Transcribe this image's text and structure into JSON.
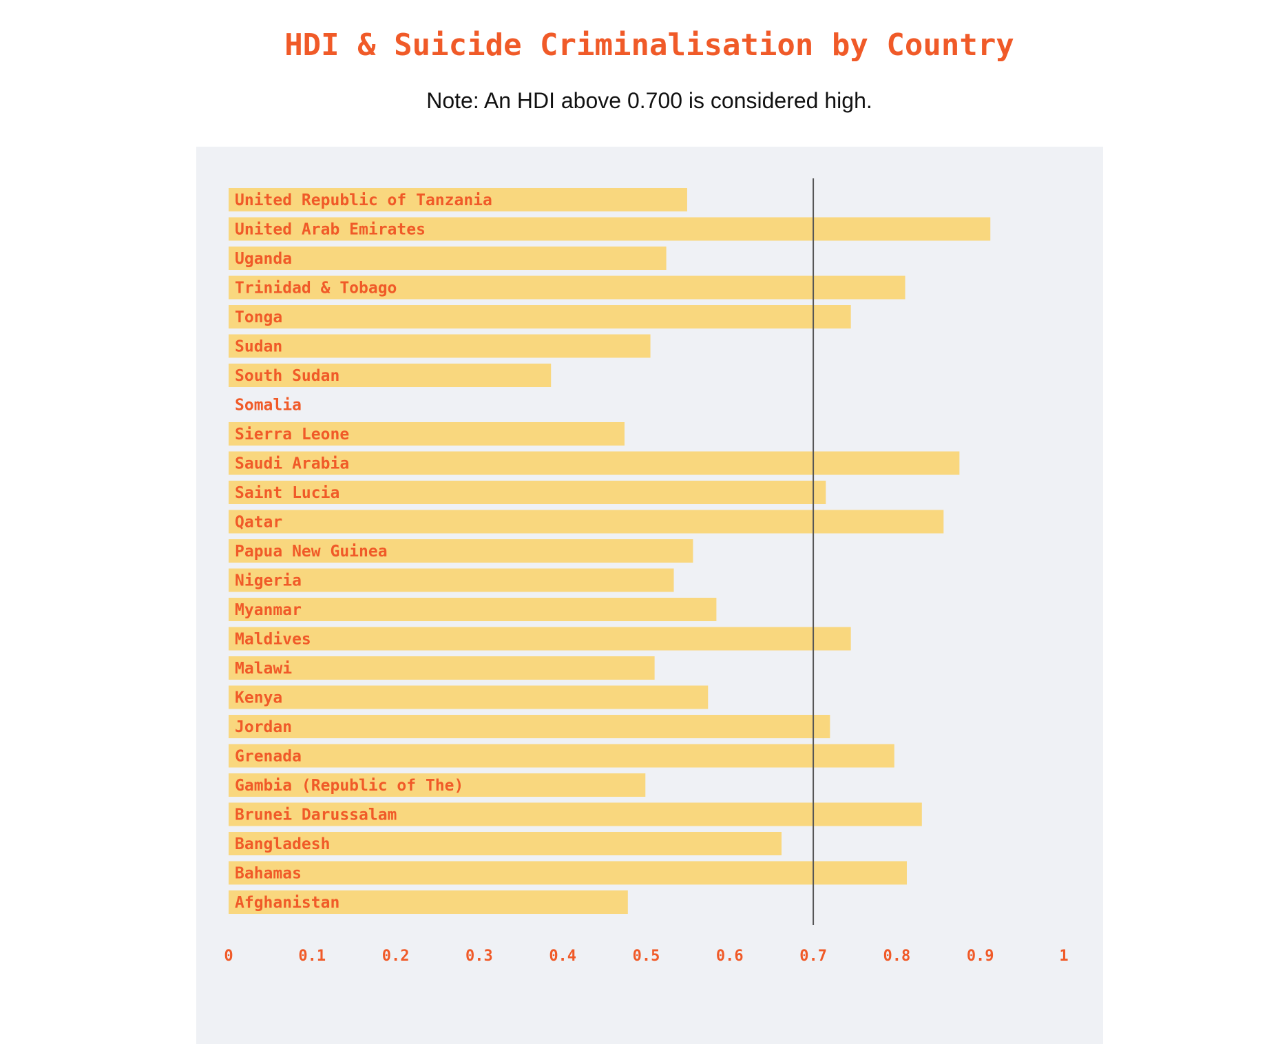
{
  "chart_data": {
    "type": "bar",
    "orientation": "horizontal",
    "title": "HDI & Suicide Criminalisation by Country",
    "subtitle": "Note: An HDI above 0.700 is considered high.",
    "categories": [
      "United Republic of Tanzania",
      "United Arab Emirates",
      "Uganda",
      "Trinidad & Tobago",
      "Tonga",
      "Sudan",
      "South Sudan",
      "Somalia",
      "Sierra Leone",
      "Saudi Arabia",
      "Saint Lucia",
      "Qatar",
      "Papua New Guinea",
      "Nigeria",
      "Myanmar",
      "Maldives",
      "Malawi",
      "Kenya",
      "Jordan",
      "Grenada",
      "Gambia (Republic of The)",
      "Brunei Darussalam",
      "Bangladesh",
      "Bahamas",
      "Afghanistan"
    ],
    "values": [
      0.549,
      0.912,
      0.524,
      0.81,
      0.745,
      0.505,
      0.386,
      null,
      0.474,
      0.875,
      0.715,
      0.856,
      0.556,
      0.533,
      0.584,
      0.745,
      0.51,
      0.574,
      0.72,
      0.797,
      0.499,
      0.83,
      0.662,
      0.812,
      0.478
    ],
    "xlim": [
      0,
      1
    ],
    "x_ticks": [
      "0",
      "0.1",
      "0.2",
      "0.3",
      "0.4",
      "0.5",
      "0.6",
      "0.7",
      "0.8",
      "0.9",
      "1"
    ],
    "reference_line": 0.7,
    "grid": false,
    "colors": {
      "bar": "#f9d77e",
      "label": "#f05a28",
      "reference_line": "#555555",
      "panel": "#eff1f5",
      "title": "#f05a28"
    }
  }
}
